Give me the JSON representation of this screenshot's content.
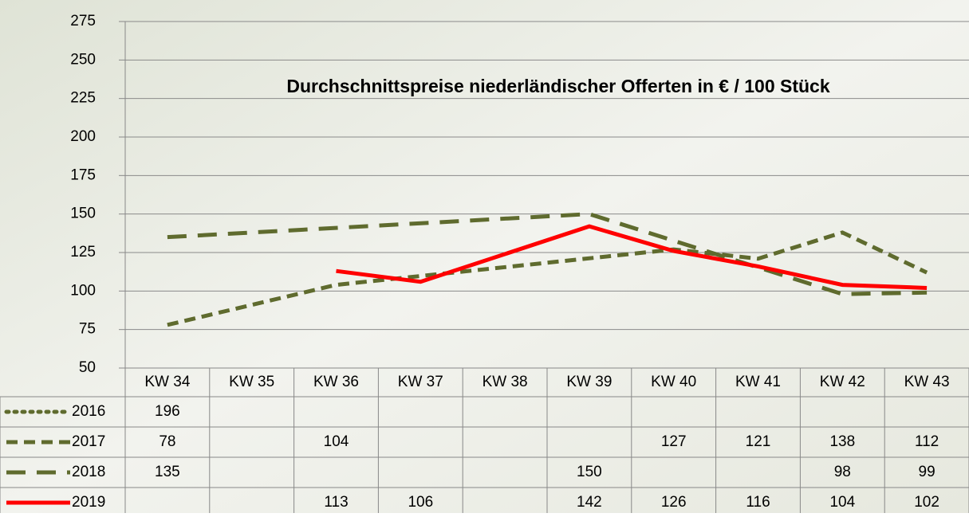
{
  "chart_data": {
    "type": "line",
    "title": "Durchschnittspreise niederländischer Offerten in € / 100 Stück",
    "categories": [
      "KW 34",
      "KW 35",
      "KW 36",
      "KW 37",
      "KW 38",
      "KW 39",
      "KW 40",
      "KW 41",
      "KW 42",
      "KW 43"
    ],
    "series": [
      {
        "name": "2016",
        "color": "#5f6b2e",
        "dash": "dot",
        "values": [
          196,
          null,
          null,
          null,
          null,
          null,
          null,
          null,
          null,
          null
        ]
      },
      {
        "name": "2017",
        "color": "#5f6b2e",
        "dash": "dash",
        "values": [
          78,
          null,
          104,
          null,
          null,
          null,
          127,
          121,
          138,
          112
        ]
      },
      {
        "name": "2018",
        "color": "#5f6b2e",
        "dash": "longdash",
        "values": [
          135,
          null,
          null,
          null,
          null,
          150,
          null,
          null,
          98,
          99
        ]
      },
      {
        "name": "2019",
        "color": "#ff0000",
        "dash": "solid",
        "values": [
          null,
          null,
          113,
          106,
          null,
          142,
          126,
          116,
          104,
          102
        ]
      }
    ],
    "connect_gaps": true,
    "ylim": [
      50,
      275
    ],
    "yticks": [
      50,
      75,
      100,
      125,
      150,
      175,
      200,
      225,
      250,
      275
    ],
    "grid": true
  }
}
